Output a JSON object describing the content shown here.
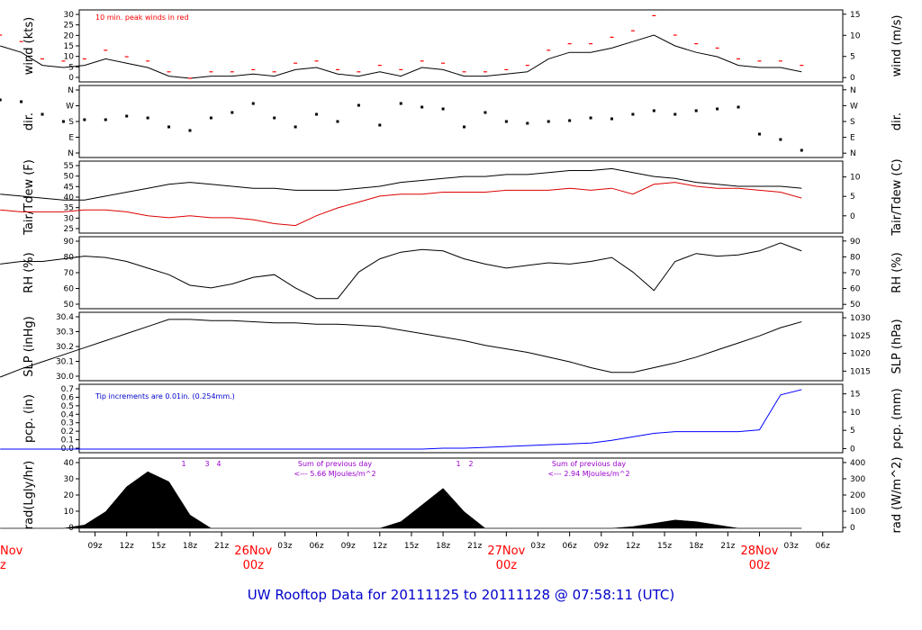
{
  "colors": {
    "series": "#000000",
    "peak": "#ff0000",
    "dew": "#dd0000",
    "precip": "#0000ff",
    "note_blue": "#0000cc",
    "note_purple": "#9900cc",
    "day_label": "#ff0000",
    "footer": "#0000cc"
  },
  "footer": {
    "title": "UW Rooftop Data for 20111125  to  20111128 @ 07:58:11  (UTC)"
  },
  "time_axis": {
    "hour_labels": [
      "09z",
      "12z",
      "15z",
      "18z",
      "21z",
      "03z",
      "06z",
      "09z",
      "12z",
      "15z",
      "18z",
      "21z",
      "03z",
      "06z",
      "09z",
      "12z",
      "15z",
      "18z",
      "21z",
      "03z",
      "06z"
    ],
    "day_labels": [
      {
        "date": "26Nov",
        "hour": "00z"
      },
      {
        "date": "27Nov",
        "hour": "00z"
      },
      {
        "date": "28Nov",
        "hour": "00z"
      }
    ],
    "cut_left": {
      "date": "Nov",
      "hour": "z"
    }
  },
  "panels": {
    "wind": {
      "left_label": "wind (kts)",
      "right_label": "wind (m/s)",
      "left_ticks": [
        "30",
        "25",
        "20",
        "15",
        "10",
        "5",
        "0"
      ],
      "right_ticks": [
        "15",
        "10",
        "5",
        "0"
      ],
      "note": "10 min. peak winds in red"
    },
    "dir": {
      "left_label": "dir.",
      "right_label": "dir.",
      "ticks": [
        "N",
        "W",
        "S",
        "E",
        "N"
      ]
    },
    "temp": {
      "left_label": "Tair/Tdew (F)",
      "right_label": "Tair/Tdew (C)",
      "left_ticks": [
        "55",
        "50",
        "45",
        "40",
        "35",
        "30",
        "25"
      ],
      "right_ticks": [
        "10",
        "5",
        "0"
      ]
    },
    "rh": {
      "left_label": "RH (%)",
      "right_label": "RH (%)",
      "left_ticks": [
        "90",
        "80",
        "70",
        "60",
        "50"
      ],
      "right_ticks": [
        "90",
        "80",
        "70",
        "60",
        "50"
      ]
    },
    "slp": {
      "left_label": "SLP (inHg)",
      "right_label": "SLP (hPa)",
      "left_ticks": [
        "30.4",
        "30.3",
        "30.2",
        "30.1",
        "30.0"
      ],
      "right_ticks": [
        "1030",
        "1025",
        "1020",
        "1015"
      ]
    },
    "pcp": {
      "left_label": "pcp. (in)",
      "right_label": "pcp. (mm)",
      "left_ticks": [
        "0.7",
        "0.6",
        "0.5",
        "0.4",
        "0.3",
        "0.2",
        "0.1",
        "0.0"
      ],
      "right_ticks": [
        "15",
        "10",
        "5",
        "0"
      ],
      "note": "Tip increments are 0.01in. (0.254mm.)"
    },
    "rad": {
      "left_label": "rad(Lgly/hr)",
      "right_label": "rad (W/m^2)",
      "left_ticks": [
        "40",
        "30",
        "20",
        "10",
        "0"
      ],
      "right_ticks": [
        "400",
        "300",
        "200",
        "100",
        "0"
      ],
      "day_notes": [
        {
          "line1": "Sum of previous day",
          "line2": "<--- 5.66 MJoules/m^2"
        },
        {
          "line1": "Sum of previous day",
          "line2": "<--- 2.94 MJoules/m^2"
        }
      ],
      "markers": [
        "1",
        "3",
        "4",
        "1",
        "2"
      ]
    }
  },
  "chart_data": [
    {
      "type": "line",
      "title": "",
      "ylabel": "wind (kts)",
      "ylim": [
        0,
        30
      ],
      "x_hours": [
        0,
        2,
        4,
        6,
        8,
        10,
        12,
        14,
        16,
        18,
        20,
        22,
        24,
        26,
        28,
        30,
        32,
        34,
        36,
        38,
        40,
        42,
        44,
        46,
        48,
        50,
        52,
        54,
        56,
        58,
        60,
        62,
        64,
        66,
        68,
        70,
        72,
        74,
        76
      ],
      "series": [
        {
          "name": "",
          "values": [
            15,
            12,
            6,
            5,
            6,
            9,
            7,
            5,
            1,
            0,
            1,
            1,
            2,
            1,
            4,
            5,
            2,
            1,
            3,
            1,
            5,
            4,
            1,
            1,
            2,
            3,
            9,
            12,
            12,
            14,
            17,
            20,
            15,
            12,
            10,
            6,
            5,
            5,
            3
          ]
        },
        {
          "name": "10 min. peak winds",
          "values": [
            20,
            17,
            9,
            8,
            9,
            13,
            10,
            8,
            3,
            0,
            3,
            3,
            4,
            3,
            7,
            8,
            4,
            3,
            6,
            4,
            8,
            7,
            3,
            3,
            4,
            6,
            13,
            16,
            16,
            19,
            22,
            29,
            20,
            16,
            14,
            9,
            8,
            8,
            6
          ]
        }
      ]
    },
    {
      "type": "scatter",
      "title": "",
      "ylabel": "dir.",
      "yticks": [
        "N",
        "W",
        "S",
        "E",
        "N"
      ],
      "x_hours": [
        0,
        2,
        4,
        6,
        8,
        10,
        12,
        14,
        16,
        18,
        20,
        22,
        24,
        26,
        28,
        30,
        32,
        34,
        36,
        38,
        40,
        42,
        44,
        46,
        48,
        50,
        52,
        54,
        56,
        58,
        60,
        62,
        64,
        66,
        68,
        70,
        72,
        74,
        76
      ],
      "values": [
        300,
        290,
        220,
        180,
        190,
        190,
        210,
        200,
        150,
        130,
        200,
        230,
        280,
        200,
        150,
        220,
        180,
        270,
        160,
        280,
        260,
        250,
        150,
        230,
        180,
        170,
        180,
        185,
        200,
        195,
        220,
        240,
        220,
        240,
        250,
        260,
        110,
        80,
        20
      ]
    },
    {
      "type": "line",
      "title": "",
      "ylabel": "Tair/Tdew (F)",
      "ylim": [
        24,
        57
      ],
      "x_hours": [
        0,
        2,
        4,
        6,
        8,
        10,
        12,
        14,
        16,
        18,
        20,
        22,
        24,
        26,
        28,
        30,
        32,
        34,
        36,
        38,
        40,
        42,
        44,
        46,
        48,
        50,
        52,
        54,
        56,
        58,
        60,
        62,
        64,
        66,
        68,
        70,
        72,
        74,
        76
      ],
      "series": [
        {
          "name": "Tair",
          "values": [
            42,
            41,
            40,
            39,
            39,
            41,
            43,
            45,
            47,
            48,
            47,
            46,
            45,
            45,
            44,
            44,
            44,
            45,
            46,
            48,
            49,
            50,
            51,
            51,
            52,
            52,
            53,
            54,
            54,
            55,
            53,
            51,
            50,
            48,
            47,
            46,
            46,
            46,
            45
          ]
        },
        {
          "name": "Tdew",
          "values": [
            34,
            33,
            33,
            33,
            34,
            34,
            33,
            31,
            30,
            31,
            30,
            30,
            29,
            27,
            26,
            31,
            35,
            38,
            41,
            42,
            42,
            43,
            43,
            43,
            44,
            44,
            44,
            45,
            44,
            45,
            42,
            47,
            48,
            46,
            45,
            45,
            44,
            43,
            40
          ]
        }
      ]
    },
    {
      "type": "line",
      "title": "",
      "ylabel": "RH (%)",
      "ylim": [
        47,
        96
      ],
      "x_hours": [
        0,
        2,
        4,
        6,
        8,
        10,
        12,
        14,
        16,
        18,
        20,
        22,
        24,
        26,
        28,
        30,
        32,
        34,
        36,
        38,
        40,
        42,
        44,
        46,
        48,
        50,
        52,
        54,
        56,
        58,
        60,
        62,
        64,
        66,
        68,
        70,
        72,
        74,
        76
      ],
      "values": [
        78,
        80,
        80,
        82,
        84,
        83,
        80,
        75,
        70,
        62,
        60,
        63,
        68,
        70,
        60,
        52,
        52,
        72,
        82,
        87,
        89,
        88,
        82,
        78,
        75,
        77,
        79,
        78,
        80,
        83,
        72,
        58,
        80,
        86,
        84,
        85,
        88,
        94,
        88
      ]
    },
    {
      "type": "line",
      "title": "",
      "ylabel": "SLP (inHg)",
      "ylim": [
        29.95,
        30.47
      ],
      "x_hours": [
        0,
        2,
        4,
        6,
        8,
        10,
        12,
        14,
        16,
        18,
        20,
        22,
        24,
        26,
        28,
        30,
        32,
        34,
        36,
        38,
        40,
        42,
        44,
        46,
        48,
        50,
        52,
        54,
        56,
        58,
        60,
        62,
        64,
        66,
        68,
        70,
        72,
        74,
        76
      ],
      "values": [
        29.95,
        30.02,
        30.08,
        30.14,
        30.2,
        30.26,
        30.32,
        30.38,
        30.44,
        30.44,
        30.43,
        30.43,
        30.42,
        30.41,
        30.41,
        30.4,
        30.4,
        30.39,
        30.38,
        30.35,
        30.32,
        30.29,
        30.26,
        30.22,
        30.19,
        30.16,
        30.12,
        30.08,
        30.03,
        29.99,
        29.99,
        30.03,
        30.07,
        30.12,
        30.18,
        30.24,
        30.3,
        30.37,
        30.42
      ]
    },
    {
      "type": "line",
      "title": "",
      "ylabel": "pcp. (in)",
      "ylim": [
        0,
        0.7
      ],
      "x_hours": [
        0,
        2,
        4,
        6,
        8,
        10,
        12,
        14,
        16,
        18,
        20,
        22,
        24,
        26,
        28,
        30,
        32,
        34,
        36,
        38,
        40,
        42,
        44,
        46,
        48,
        50,
        52,
        54,
        56,
        58,
        60,
        62,
        64,
        66,
        68,
        70,
        72,
        74,
        76
      ],
      "values": [
        0,
        0,
        0,
        0,
        0,
        0,
        0,
        0,
        0,
        0,
        0,
        0,
        0,
        0,
        0,
        0,
        0,
        0,
        0,
        0,
        0,
        0.01,
        0.01,
        0.02,
        0.03,
        0.04,
        0.05,
        0.06,
        0.07,
        0.1,
        0.14,
        0.18,
        0.2,
        0.2,
        0.2,
        0.2,
        0.22,
        0.62,
        0.68
      ]
    },
    {
      "type": "area",
      "title": "",
      "ylabel": "rad(Lgly/hr)",
      "ylim": [
        0,
        40
      ],
      "x_hours": [
        0,
        2,
        4,
        6,
        8,
        10,
        12,
        14,
        16,
        18,
        20,
        22,
        24,
        26,
        28,
        30,
        32,
        34,
        36,
        38,
        40,
        42,
        44,
        46,
        48,
        50,
        52,
        54,
        56,
        58,
        60,
        62,
        64,
        66,
        68,
        70,
        72,
        74,
        76
      ],
      "values": [
        0,
        0,
        0,
        0,
        2,
        10,
        25,
        34,
        28,
        8,
        0,
        0,
        0,
        0,
        0,
        0,
        0,
        0,
        0,
        4,
        14,
        24,
        10,
        0,
        0,
        0,
        0,
        0,
        0,
        0,
        1,
        3,
        5,
        4,
        2,
        0,
        0,
        0,
        0
      ]
    }
  ]
}
